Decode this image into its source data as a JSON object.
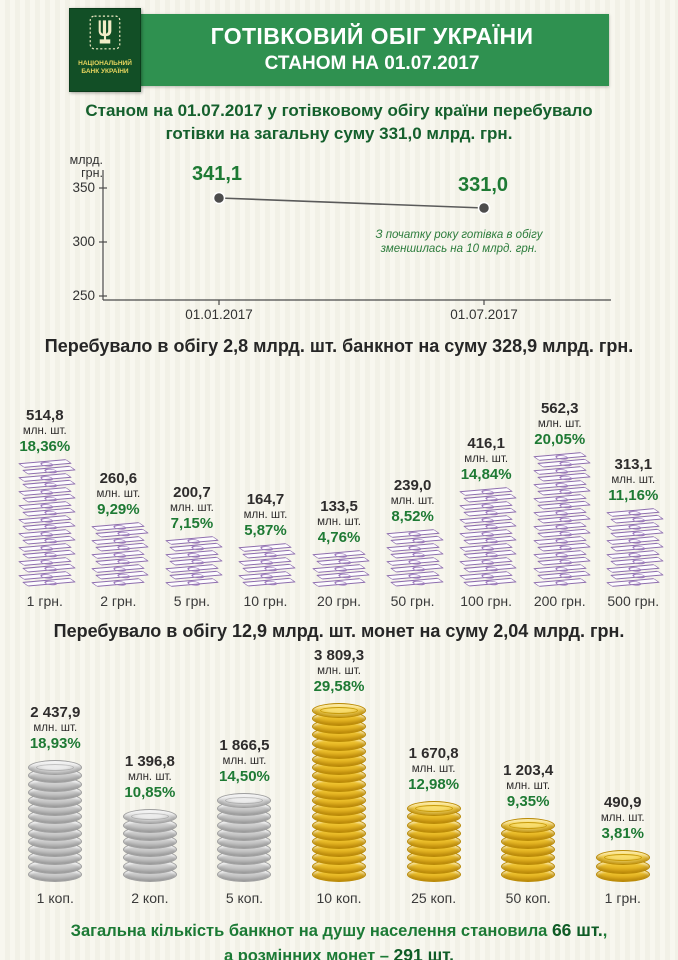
{
  "header": {
    "title": "ГОТІВКОВИЙ ОБІГ УКРАЇНИ",
    "subtitle": "СТАНОМ НА 01.07.2017",
    "logo_text": "НАЦІОНАЛЬНИЙ БАНК УКРАЇНИ"
  },
  "intro": {
    "line1": "Станом  на 01.07.2017 у готівковому обігу країни перебувало",
    "line2": "готівки на загальну суму 331,0 млрд. грн."
  },
  "chart_data": [
    {
      "type": "line",
      "ylabel_lines": [
        "млрд.",
        "грн."
      ],
      "yticks": [
        350,
        300,
        250
      ],
      "ylim": [
        250,
        360
      ],
      "grid": false,
      "x": [
        "01.01.2017",
        "01.07.2017"
      ],
      "values": [
        341.1,
        331.0
      ],
      "point_labels": [
        "341,1",
        "331,0"
      ],
      "annotation_lines": [
        "З початку року готівка  в  обігу",
        "зменшилась на 10  млрд. грн."
      ]
    },
    {
      "type": "bar",
      "title": "Перебувало в обігу 2,8 млрд. шт. банкнот на суму 328,9 млрд. грн.",
      "unit": "млн. шт.",
      "categories": [
        "1 грн.",
        "2 грн.",
        "5 грн.",
        "10 грн.",
        "20 грн.",
        "50 грн.",
        "100 грн.",
        "200 грн.",
        "500 грн."
      ],
      "values": [
        514.8,
        260.6,
        200.7,
        164.7,
        133.5,
        239.0,
        416.1,
        562.3,
        313.1
      ],
      "value_labels": [
        "514,8",
        "260,6",
        "200,7",
        "164,7",
        "133,5",
        "239,0",
        "416,1",
        "562,3",
        "313,1"
      ],
      "percents": [
        "18,36%",
        "9,29%",
        "7,15%",
        "5,87%",
        "4,76%",
        "8,52%",
        "14,84%",
        "20,05%",
        "11,16%"
      ]
    },
    {
      "type": "bar",
      "title": "Перебувало в обігу 12,9 млрд. шт. монет на суму 2,04 млрд. грн.",
      "unit": "млн. шт.",
      "categories": [
        "1 коп.",
        "2 коп.",
        "5 коп.",
        "10 коп.",
        "25 коп.",
        "50 коп.",
        "1 грн."
      ],
      "values": [
        2437.9,
        1396.8,
        1866.5,
        3809.3,
        1670.8,
        1203.4,
        490.9
      ],
      "value_labels": [
        "2 437,9",
        "1 396,8",
        "1 866,5",
        "3 809,3",
        "1 670,8",
        "1 203,4",
        "490,9"
      ],
      "percents": [
        "18,93%",
        "10,85%",
        "14,50%",
        "29,58%",
        "12,98%",
        "9,35%",
        "3,81%"
      ],
      "coin_colors": [
        "silver",
        "silver",
        "silver",
        "gold",
        "gold",
        "gold",
        "gold"
      ]
    }
  ],
  "footer": {
    "line1_prefix": "Загальна кількість банкнот на душу населення становила ",
    "line1_value": "66 шт.",
    "line1_suffix": ",",
    "line2_prefix": "а розмінних монет – ",
    "line2_value": "291",
    "line2_suffix": " шт."
  },
  "colors": {
    "banner_green": "#2f9150",
    "logo_green": "#124f26",
    "text_green": "#15602d",
    "percent_green": "#1e7a34",
    "footer_green": "#1c7a35",
    "banknote_purple": "#8d6cae",
    "coin_gold": "#eebb1c",
    "coin_silver": "#c7c7c7",
    "background": "#f5f4ea"
  }
}
